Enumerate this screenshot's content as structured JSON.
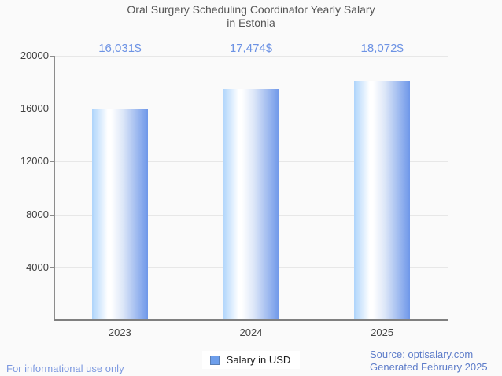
{
  "title": {
    "line1": "Oral Surgery Scheduling Coordinator Yearly Salary",
    "line2": "in Estonia"
  },
  "chart_data": {
    "type": "bar",
    "categories": [
      "2023",
      "2024",
      "2025"
    ],
    "values": [
      16031,
      17474,
      18072
    ],
    "value_labels": [
      "16,031$",
      "17,474$",
      "18,072$"
    ],
    "series_name": "Salary in USD",
    "ylim": [
      0,
      20000
    ],
    "yticks": [
      4000,
      8000,
      12000,
      16000,
      20000
    ],
    "ytick_labels": [
      "4000",
      "8000",
      "12000",
      "16000",
      "20000"
    ],
    "grid": "horizontal",
    "legend_position": "bottom-center"
  },
  "legend": {
    "label": "Salary in USD"
  },
  "footer": {
    "left": "For informational use only",
    "source": "Source: optisalary.com",
    "generated": "Generated February 2025"
  },
  "colors": {
    "background": "#fafafa",
    "title_text": "#555555",
    "value_label_blue": "#6c92e4",
    "bar_gradient_left": "#aed4fb",
    "bar_gradient_white": "#ffffff",
    "bar_gradient_right": "#6e97e9",
    "legend_swatch_fill": "#6d9eeb",
    "legend_swatch_border": "#5a7fb5",
    "footer_left_blue": "#7d99e0",
    "footer_right_blue": "#5d7cc9",
    "gridline": "#e7e7e7",
    "axis_line": "#8c8c8c"
  }
}
